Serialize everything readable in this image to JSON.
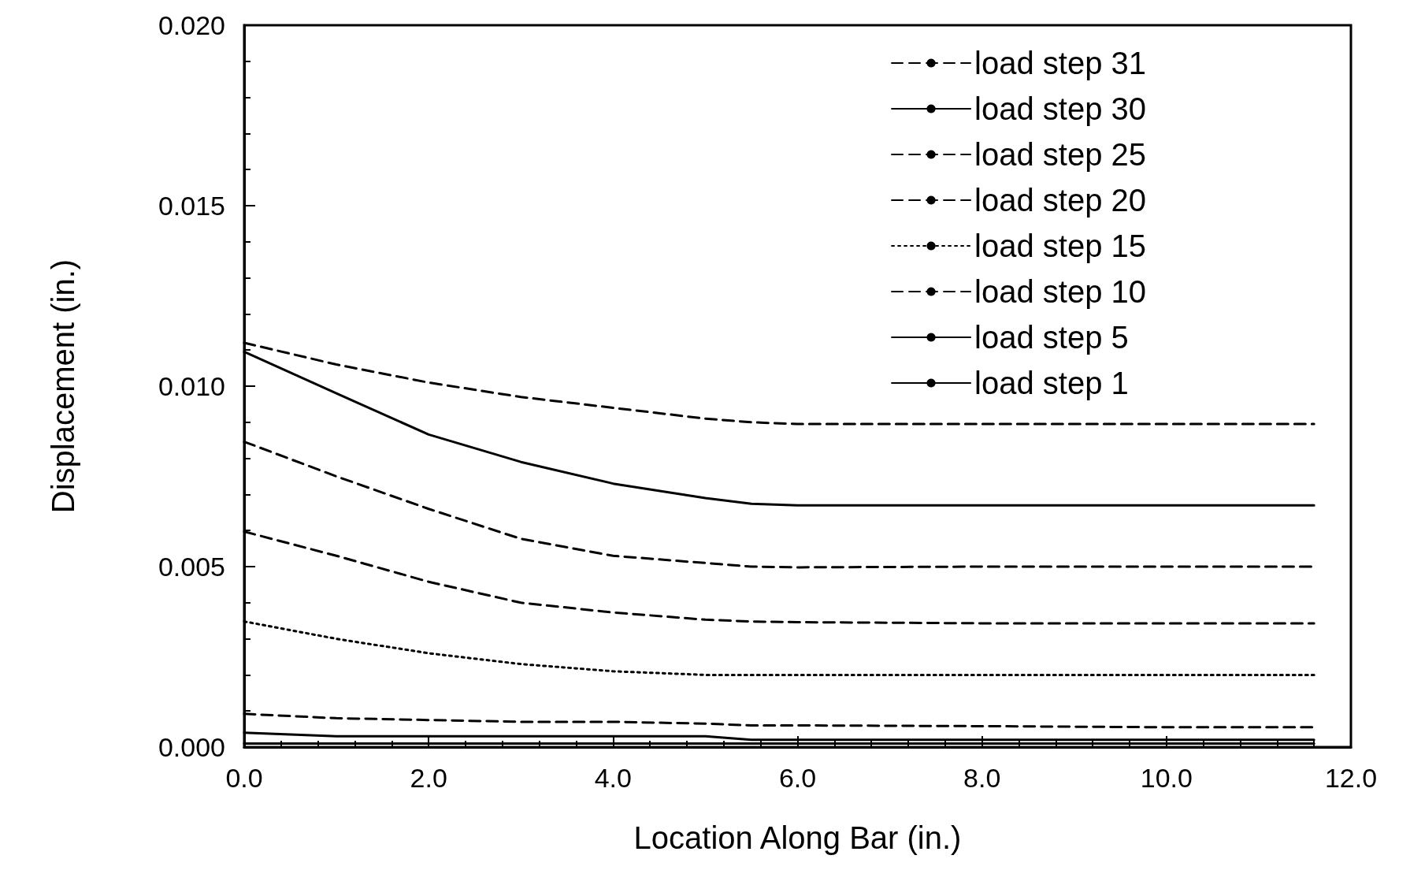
{
  "chart_data": {
    "type": "line",
    "xlabel": "Location Along Bar (in.)",
    "ylabel": "Displacement (in.)",
    "xlim": [
      0,
      12
    ],
    "xticks": [
      {
        "value": 0,
        "label": "0.0"
      },
      {
        "value": 2,
        "label": "2.0"
      },
      {
        "value": 4,
        "label": "4.0"
      },
      {
        "value": 6,
        "label": "6.0"
      },
      {
        "value": 8,
        "label": "8.0"
      },
      {
        "value": 10,
        "label": "10.0"
      },
      {
        "value": 12,
        "label": "12.0"
      }
    ],
    "ylim": [
      0,
      0.02
    ],
    "yticks": [
      {
        "value": 0,
        "label": "0.000"
      },
      {
        "value": 0.005,
        "label": "0.005"
      },
      {
        "value": 0.01,
        "label": "0.010"
      },
      {
        "value": 0.015,
        "label": "0.015"
      },
      {
        "value": 0.02,
        "label": "0.020"
      }
    ],
    "x": [
      0,
      1,
      2,
      3,
      4,
      5,
      5.5,
      6,
      8,
      10,
      11.6
    ],
    "grid": false,
    "legend": "top right",
    "marker": "none",
    "series": [
      {
        "name": "load step 31",
        "color": "#000000",
        "line_style": "dashed",
        "values": [
          0.0112,
          0.0106,
          0.0101,
          0.0097,
          0.0094,
          0.0091,
          0.009,
          0.00895,
          0.00895,
          0.00895,
          0.00895
        ]
      },
      {
        "name": "load step 30",
        "color": "#000000",
        "line_style": "solid",
        "values": [
          0.01095,
          0.0098,
          0.00866,
          0.0079,
          0.0073,
          0.0069,
          0.00674,
          0.0067,
          0.0067,
          0.0067,
          0.0067
        ]
      },
      {
        "name": "load step 25",
        "color": "#000000",
        "line_style": "dashed",
        "values": [
          0.00846,
          0.0075,
          0.0066,
          0.00577,
          0.0053,
          0.0051,
          0.005,
          0.00498,
          0.005,
          0.005,
          0.005
        ]
      },
      {
        "name": "load step 20",
        "color": "#000000",
        "line_style": "dashed",
        "values": [
          0.00597,
          0.0053,
          0.00458,
          0.004,
          0.00373,
          0.00353,
          0.00348,
          0.00346,
          0.00343,
          0.00343,
          0.00343
        ]
      },
      {
        "name": "load step 15",
        "color": "#000000",
        "line_style": "dotted",
        "values": [
          0.00348,
          0.003,
          0.0026,
          0.0023,
          0.0021,
          0.002,
          0.002,
          0.002,
          0.002,
          0.002,
          0.002
        ]
      },
      {
        "name": "load step 10",
        "color": "#000000",
        "line_style": "dashed",
        "values": [
          0.00092,
          0.0008,
          0.00075,
          0.0007,
          0.0007,
          0.00065,
          0.0006,
          0.0006,
          0.00058,
          0.00055,
          0.00055
        ]
      },
      {
        "name": "load step 5",
        "color": "#000000",
        "line_style": "solid",
        "values": [
          0.0004,
          0.0003,
          0.0003,
          0.0003,
          0.0003,
          0.0003,
          0.0002,
          0.0002,
          0.0002,
          0.0002,
          0.0002
        ]
      },
      {
        "name": "load step 1",
        "color": "#000000",
        "line_style": "solid",
        "values": [
          0.0001,
          0.0001,
          0.0001,
          0.0001,
          0.0001,
          0.0001,
          0.0001,
          0.0001,
          0.0001,
          0.0001,
          0.0001
        ]
      }
    ]
  }
}
